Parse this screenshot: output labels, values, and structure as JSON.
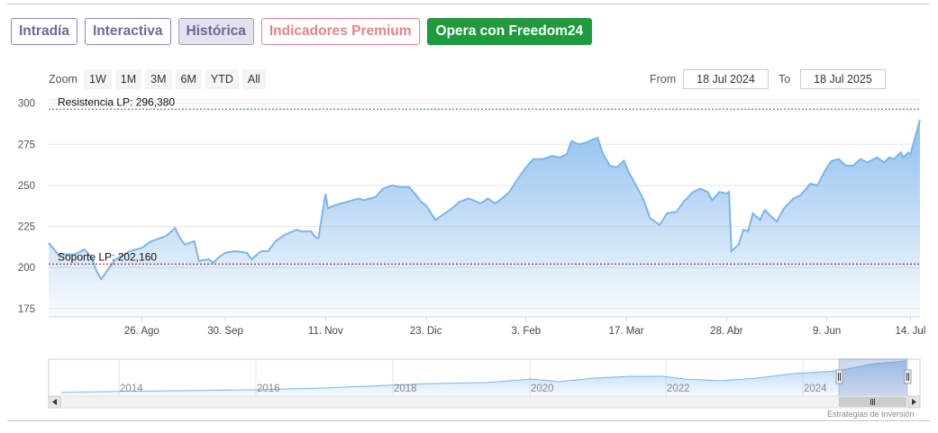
{
  "tabs": {
    "intradia": "Intradía",
    "interactiva": "Interactiva",
    "historica": "Histórica",
    "premium": "Indicadores Premium",
    "cta": "Opera con Freedom24"
  },
  "zoom": {
    "label": "Zoom",
    "buttons": [
      "1W",
      "1M",
      "3M",
      "6M",
      "YTD",
      "All"
    ]
  },
  "range": {
    "from_label": "From",
    "from_value": "18 Jul 2024",
    "to_label": "To",
    "to_value": "18 Jul 2025"
  },
  "credit": "Estrategias de Inversión",
  "chart_data": {
    "type": "area",
    "series_color": "#7cb5ec",
    "grid": true,
    "ylim": [
      170,
      302
    ],
    "yticks": [
      175,
      200,
      225,
      250,
      275,
      300
    ],
    "x_range": [
      "2024-07-18",
      "2025-07-18"
    ],
    "xticks": [
      {
        "date": "2024-08-26",
        "label": "26. Ago"
      },
      {
        "date": "2024-09-30",
        "label": "30. Sep"
      },
      {
        "date": "2024-11-11",
        "label": "11. Nov"
      },
      {
        "date": "2024-12-23",
        "label": "23. Dic"
      },
      {
        "date": "2025-02-03",
        "label": "3. Feb"
      },
      {
        "date": "2025-03-17",
        "label": "17. Mar"
      },
      {
        "date": "2025-04-28",
        "label": "28. Abr"
      },
      {
        "date": "2025-06-09",
        "label": "9. Jun"
      },
      {
        "date": "2025-07-14",
        "label": "14. Jul"
      }
    ],
    "levels": [
      {
        "label": "Resistencia LP: 296,380",
        "value": 296.38,
        "color": "#2e7d32"
      },
      {
        "label": "Soporte LP: 202,160",
        "value": 202.16,
        "color": "#8b1a1a"
      }
    ],
    "points": [
      [
        "2024-07-18",
        215
      ],
      [
        "2024-07-22",
        208
      ],
      [
        "2024-07-29",
        208
      ],
      [
        "2024-08-02",
        211
      ],
      [
        "2024-08-05",
        206
      ],
      [
        "2024-08-07",
        198
      ],
      [
        "2024-08-09",
        193
      ],
      [
        "2024-08-12",
        199
      ],
      [
        "2024-08-15",
        205
      ],
      [
        "2024-08-21",
        210
      ],
      [
        "2024-08-26",
        212
      ],
      [
        "2024-08-30",
        216
      ],
      [
        "2024-09-05",
        219
      ],
      [
        "2024-09-09",
        224
      ],
      [
        "2024-09-11",
        218
      ],
      [
        "2024-09-13",
        214
      ],
      [
        "2024-09-17",
        216
      ],
      [
        "2024-09-19",
        204
      ],
      [
        "2024-09-23",
        205
      ],
      [
        "2024-09-25",
        203
      ],
      [
        "2024-09-27",
        206
      ],
      [
        "2024-09-30",
        209
      ],
      [
        "2024-10-04",
        210
      ],
      [
        "2024-10-09",
        209
      ],
      [
        "2024-10-11",
        205
      ],
      [
        "2024-10-15",
        210
      ],
      [
        "2024-10-18",
        210
      ],
      [
        "2024-10-21",
        216
      ],
      [
        "2024-10-25",
        220
      ],
      [
        "2024-10-30",
        223
      ],
      [
        "2024-11-01",
        222
      ],
      [
        "2024-11-05",
        222
      ],
      [
        "2024-11-07",
        218
      ],
      [
        "2024-11-08",
        218
      ],
      [
        "2024-11-11",
        245
      ],
      [
        "2024-11-12",
        236
      ],
      [
        "2024-11-15",
        238
      ],
      [
        "2024-11-20",
        240
      ],
      [
        "2024-11-25",
        242
      ],
      [
        "2024-11-27",
        241
      ],
      [
        "2024-12-02",
        243
      ],
      [
        "2024-12-05",
        248
      ],
      [
        "2024-12-09",
        250
      ],
      [
        "2024-12-12",
        249
      ],
      [
        "2024-12-16",
        249
      ],
      [
        "2024-12-19",
        244
      ],
      [
        "2024-12-21",
        240
      ],
      [
        "2024-12-23",
        238
      ],
      [
        "2024-12-27",
        229
      ],
      [
        "2024-12-30",
        232
      ],
      [
        "2025-01-03",
        236
      ],
      [
        "2025-01-06",
        240
      ],
      [
        "2025-01-10",
        242
      ],
      [
        "2025-01-15",
        239
      ],
      [
        "2025-01-18",
        242
      ],
      [
        "2025-01-21",
        239
      ],
      [
        "2025-01-23",
        241
      ],
      [
        "2025-01-27",
        246
      ],
      [
        "2025-01-31",
        255
      ],
      [
        "2025-02-03",
        261
      ],
      [
        "2025-02-06",
        266
      ],
      [
        "2025-02-10",
        266
      ],
      [
        "2025-02-14",
        268
      ],
      [
        "2025-02-17",
        267
      ],
      [
        "2025-02-20",
        269
      ],
      [
        "2025-02-22",
        277
      ],
      [
        "2025-02-25",
        275
      ],
      [
        "2025-02-28",
        276
      ],
      [
        "2025-03-03",
        278
      ],
      [
        "2025-03-05",
        279
      ],
      [
        "2025-03-07",
        270
      ],
      [
        "2025-03-10",
        262
      ],
      [
        "2025-03-13",
        261
      ],
      [
        "2025-03-16",
        265
      ],
      [
        "2025-03-18",
        258
      ],
      [
        "2025-03-21",
        250
      ],
      [
        "2025-03-24",
        242
      ],
      [
        "2025-03-27",
        230
      ],
      [
        "2025-03-31",
        226
      ],
      [
        "2025-04-03",
        233
      ],
      [
        "2025-04-07",
        234
      ],
      [
        "2025-04-10",
        240
      ],
      [
        "2025-04-14",
        246
      ],
      [
        "2025-04-17",
        248
      ],
      [
        "2025-04-20",
        246
      ],
      [
        "2025-04-22",
        241
      ],
      [
        "2025-04-25",
        246
      ],
      [
        "2025-04-28",
        245
      ],
      [
        "2025-04-29",
        246
      ],
      [
        "2025-04-30",
        210
      ],
      [
        "2025-05-03",
        214
      ],
      [
        "2025-05-05",
        223
      ],
      [
        "2025-05-07",
        222
      ],
      [
        "2025-05-09",
        233
      ],
      [
        "2025-05-12",
        229
      ],
      [
        "2025-05-14",
        235
      ],
      [
        "2025-05-16",
        232
      ],
      [
        "2025-05-19",
        228
      ],
      [
        "2025-05-22",
        236
      ],
      [
        "2025-05-26",
        242
      ],
      [
        "2025-05-29",
        244
      ],
      [
        "2025-06-02",
        251
      ],
      [
        "2025-06-05",
        250
      ],
      [
        "2025-06-09",
        261
      ],
      [
        "2025-06-11",
        265
      ],
      [
        "2025-06-14",
        266
      ],
      [
        "2025-06-17",
        262
      ],
      [
        "2025-06-20",
        262
      ],
      [
        "2025-06-23",
        266
      ],
      [
        "2025-06-26",
        264
      ],
      [
        "2025-06-30",
        267
      ],
      [
        "2025-07-03",
        264
      ],
      [
        "2025-07-05",
        267
      ],
      [
        "2025-07-07",
        266
      ],
      [
        "2025-07-10",
        270
      ],
      [
        "2025-07-11",
        267
      ],
      [
        "2025-07-13",
        270
      ],
      [
        "2025-07-14",
        269
      ],
      [
        "2025-07-18",
        290
      ]
    ]
  },
  "navigator": {
    "year_labels": [
      "2014",
      "2016",
      "2018",
      "2020",
      "2022",
      "2024"
    ],
    "selection_years": [
      "2024",
      "2025"
    ]
  }
}
